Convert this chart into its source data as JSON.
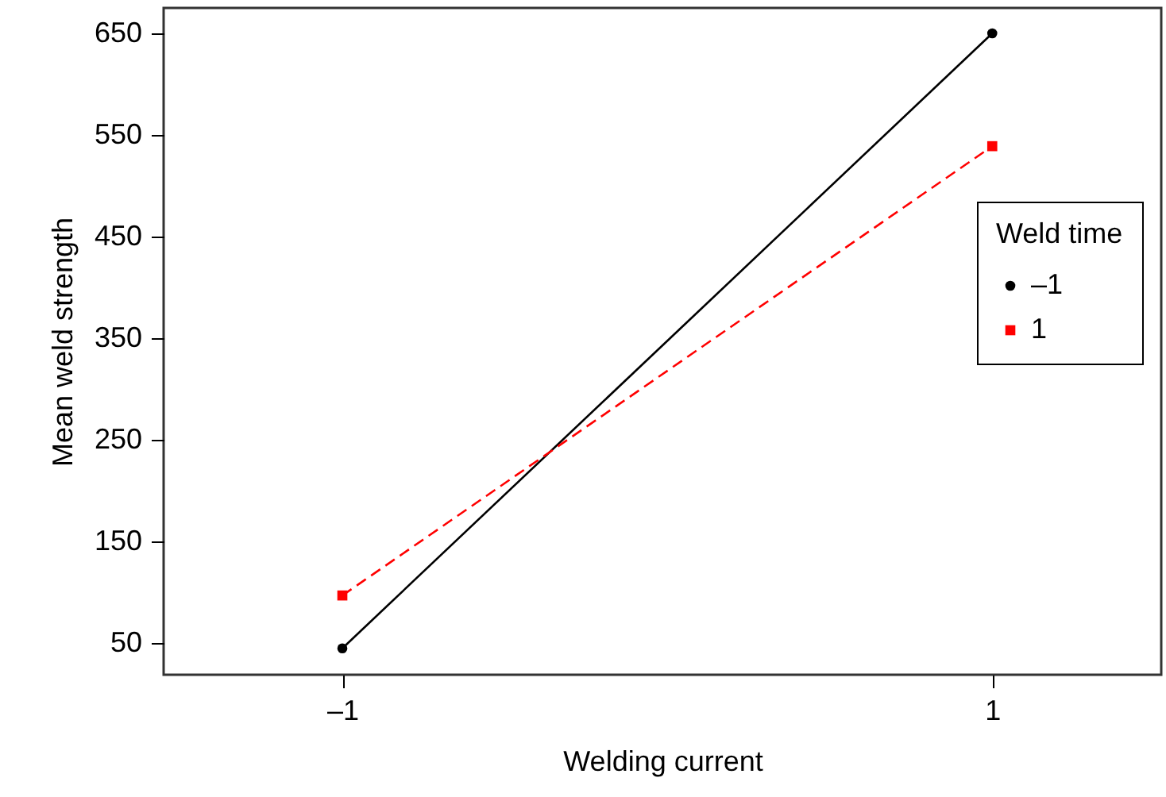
{
  "chart_data": {
    "type": "line",
    "xlabel": "Welding current",
    "ylabel": "Mean weld strength",
    "legend_title": "Weld time",
    "x": [
      -1,
      1
    ],
    "series": [
      {
        "name": "–1",
        "color": "#000000",
        "values": [
          45,
          650
        ],
        "marker": "circle",
        "line_style": "solid"
      },
      {
        "name": "1",
        "color": "#ff0000",
        "values": [
          97,
          539
        ],
        "marker": "square",
        "line_style": "dashed"
      }
    ],
    "xlim": [
      -1.55,
      1.52
    ],
    "xticks": [
      {
        "value": -1,
        "label": "–1"
      },
      {
        "value": 1,
        "label": "1"
      }
    ],
    "ylim": [
      19,
      675
    ],
    "yticks": [
      50,
      150,
      250,
      350,
      450,
      550,
      650
    ],
    "grid": false,
    "legend": "right"
  }
}
